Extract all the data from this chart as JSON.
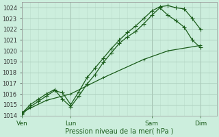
{
  "xlabel": "Pression niveau de la mer( hPa )",
  "bg_color": "#cceedd",
  "grid_major_color": "#aaccbb",
  "grid_minor_color": "#bbddcc",
  "line_color": "#1a5c1a",
  "ylim": [
    1014,
    1024.5
  ],
  "ytick_vals": [
    1014,
    1015,
    1016,
    1017,
    1018,
    1019,
    1020,
    1021,
    1022,
    1023,
    1024
  ],
  "xtick_positions": [
    0,
    3,
    8,
    11
  ],
  "xtick_labels": [
    "Ven",
    "Lun",
    "Sam",
    "Dim"
  ],
  "xlim": [
    0,
    12
  ],
  "line1_x": [
    0,
    0.5,
    1.0,
    1.5,
    2.0,
    2.5,
    3.0,
    3.5,
    4.0,
    4.5,
    5.0,
    5.5,
    6.0,
    6.5,
    7.0,
    7.5,
    8.0,
    8.5,
    9.0,
    9.5,
    10.0,
    10.5,
    11.0
  ],
  "line1_y": [
    1014.1,
    1014.8,
    1015.3,
    1015.8,
    1016.3,
    1016.1,
    1015.0,
    1016.2,
    1017.5,
    1018.4,
    1019.3,
    1020.2,
    1021.0,
    1021.7,
    1022.3,
    1023.0,
    1023.7,
    1024.1,
    1024.2,
    1024.0,
    1023.9,
    1023.0,
    1022.0
  ],
  "line2_x": [
    0,
    0.5,
    1.0,
    1.5,
    2.0,
    2.5,
    3.0,
    3.5,
    4.0,
    4.5,
    5.0,
    5.5,
    6.0,
    6.5,
    7.0,
    7.5,
    8.0,
    8.5,
    9.0,
    9.5,
    10.0,
    10.5,
    11.0
  ],
  "line2_y": [
    1014.2,
    1015.0,
    1015.5,
    1016.0,
    1016.4,
    1015.5,
    1014.8,
    1015.8,
    1016.9,
    1017.8,
    1018.9,
    1019.8,
    1020.7,
    1021.3,
    1021.8,
    1022.5,
    1023.3,
    1024.0,
    1023.3,
    1022.8,
    1022.2,
    1021.0,
    1020.3
  ],
  "line3_x": [
    0,
    1.5,
    3.0,
    5.0,
    7.5,
    9.0,
    11.0
  ],
  "line3_y": [
    1014.3,
    1015.4,
    1016.0,
    1017.5,
    1019.2,
    1020.0,
    1020.5
  ]
}
